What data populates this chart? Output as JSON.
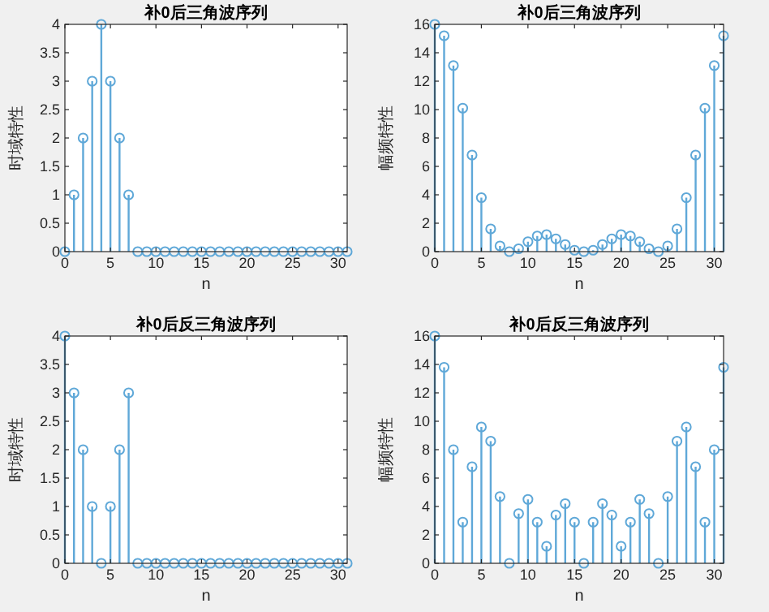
{
  "chart_data": [
    {
      "type": "lollipop",
      "title": "补0后三角波序列",
      "xlabel": "n",
      "ylabel": "时域特性",
      "marker": "circle",
      "grid": false,
      "xlim": [
        0,
        31
      ],
      "ylim": [
        0,
        4
      ],
      "xticks": [
        0,
        5,
        10,
        15,
        20,
        25,
        30
      ],
      "yticks": [
        0,
        0.5,
        1,
        1.5,
        2,
        2.5,
        3,
        3.5,
        4
      ],
      "x": [
        0,
        1,
        2,
        3,
        4,
        5,
        6,
        7,
        8,
        9,
        10,
        11,
        12,
        13,
        14,
        15,
        16,
        17,
        18,
        19,
        20,
        21,
        22,
        23,
        24,
        25,
        26,
        27,
        28,
        29,
        30,
        31
      ],
      "series": [
        {
          "color": "#5fa8d8",
          "values": [
            0,
            1,
            2,
            3,
            4,
            3,
            2,
            1,
            0,
            0,
            0,
            0,
            0,
            0,
            0,
            0,
            0,
            0,
            0,
            0,
            0,
            0,
            0,
            0,
            0,
            0,
            0,
            0,
            0,
            0,
            0,
            0
          ]
        }
      ]
    },
    {
      "type": "lollipop",
      "title": "补0后三角波序列",
      "xlabel": "n",
      "ylabel": "幅频特性",
      "marker": "circle",
      "grid": false,
      "xlim": [
        0,
        31
      ],
      "ylim": [
        0,
        16
      ],
      "xticks": [
        0,
        5,
        10,
        15,
        20,
        25,
        30
      ],
      "yticks": [
        0,
        2,
        4,
        6,
        8,
        10,
        12,
        14,
        16
      ],
      "x": [
        0,
        1,
        2,
        3,
        4,
        5,
        6,
        7,
        8,
        9,
        10,
        11,
        12,
        13,
        14,
        15,
        16,
        17,
        18,
        19,
        20,
        21,
        22,
        23,
        24,
        25,
        26,
        27,
        28,
        29,
        30,
        31
      ],
      "series": [
        {
          "color": "#5fa8d8",
          "values": [
            16,
            15.2,
            13.1,
            10.1,
            6.8,
            3.8,
            1.6,
            0.4,
            0,
            0.2,
            0.7,
            1.1,
            1.2,
            0.9,
            0.5,
            0.1,
            0,
            0.1,
            0.5,
            0.9,
            1.2,
            1.1,
            0.7,
            0.2,
            0,
            0.4,
            1.6,
            3.8,
            6.8,
            10.1,
            13.1,
            15.2
          ]
        }
      ]
    },
    {
      "type": "lollipop",
      "title": "补0后反三角波序列",
      "xlabel": "n",
      "ylabel": "时域特性",
      "marker": "circle",
      "grid": false,
      "xlim": [
        0,
        31
      ],
      "ylim": [
        0,
        4
      ],
      "xticks": [
        0,
        5,
        10,
        15,
        20,
        25,
        30
      ],
      "yticks": [
        0,
        0.5,
        1,
        1.5,
        2,
        2.5,
        3,
        3.5,
        4
      ],
      "x": [
        0,
        1,
        2,
        3,
        4,
        5,
        6,
        7,
        8,
        9,
        10,
        11,
        12,
        13,
        14,
        15,
        16,
        17,
        18,
        19,
        20,
        21,
        22,
        23,
        24,
        25,
        26,
        27,
        28,
        29,
        30,
        31
      ],
      "series": [
        {
          "color": "#5fa8d8",
          "values": [
            4,
            3,
            2,
            1,
            0,
            1,
            2,
            3,
            0,
            0,
            0,
            0,
            0,
            0,
            0,
            0,
            0,
            0,
            0,
            0,
            0,
            0,
            0,
            0,
            0,
            0,
            0,
            0,
            0,
            0,
            0,
            0
          ]
        }
      ]
    },
    {
      "type": "lollipop",
      "title": "补0后反三角波序列",
      "xlabel": "n",
      "ylabel": "幅频特性",
      "marker": "circle",
      "grid": false,
      "xlim": [
        0,
        31
      ],
      "ylim": [
        0,
        16
      ],
      "xticks": [
        0,
        5,
        10,
        15,
        20,
        25,
        30
      ],
      "yticks": [
        0,
        2,
        4,
        6,
        8,
        10,
        12,
        14,
        16
      ],
      "x": [
        0,
        1,
        2,
        3,
        4,
        5,
        6,
        7,
        8,
        9,
        10,
        11,
        12,
        13,
        14,
        15,
        16,
        17,
        18,
        19,
        20,
        21,
        22,
        23,
        24,
        25,
        26,
        27,
        28,
        29,
        30,
        31
      ],
      "series": [
        {
          "color": "#5fa8d8",
          "values": [
            16,
            13.8,
            8,
            2.9,
            6.8,
            9.6,
            8.6,
            4.7,
            0,
            3.5,
            4.5,
            2.9,
            1.2,
            3.4,
            4.2,
            2.9,
            0,
            2.9,
            4.2,
            3.4,
            1.2,
            2.9,
            4.5,
            3.5,
            0,
            4.7,
            8.6,
            9.6,
            6.8,
            2.9,
            8,
            13.8
          ]
        }
      ]
    }
  ]
}
